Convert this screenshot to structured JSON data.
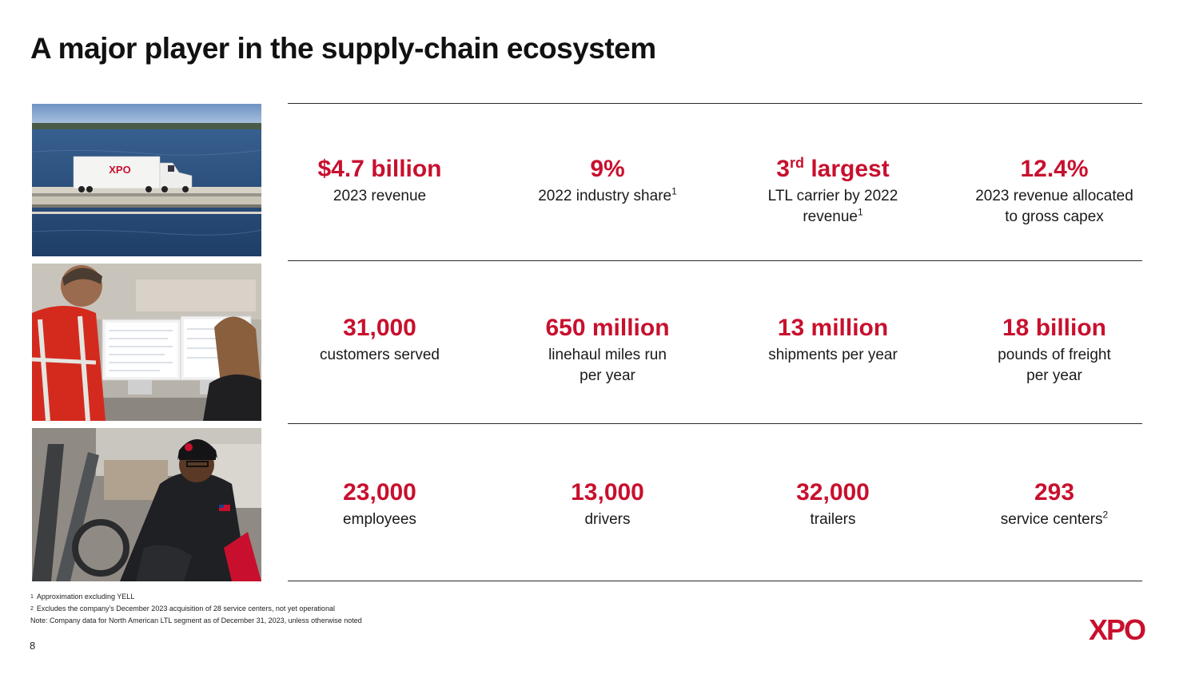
{
  "title": "A major player in the supply-chain ecosystem",
  "stats": [
    {
      "value": "$4.7 billion",
      "label": "2023 revenue"
    },
    {
      "value": "9%",
      "label": "2022 industry share",
      "label_sup": "1"
    },
    {
      "value_main": "3",
      "value_sup": "rd",
      "value_rest": " largest",
      "label_line1": "LTL carrier by 2022",
      "label_line2": "revenue",
      "label_sup": "1"
    },
    {
      "value": "12.4%",
      "label_line1": "2023 revenue allocated",
      "label_line2": "to gross capex"
    },
    {
      "value": "31,000",
      "label": "customers served"
    },
    {
      "value": "650 million",
      "label_line1": "linehaul miles run",
      "label_line2": "per year"
    },
    {
      "value": "13 million",
      "label": "shipments per year"
    },
    {
      "value": "18 billion",
      "label_line1": "pounds of freight",
      "label_line2": "per year"
    },
    {
      "value": "23,000",
      "label": "employees"
    },
    {
      "value": "13,000",
      "label": "drivers"
    },
    {
      "value": "32,000",
      "label": "trailers"
    },
    {
      "value": "293",
      "label": "service centers",
      "label_sup": "2"
    }
  ],
  "footnotes": {
    "fn1_num": "1",
    "fn1_text": "Approximation excluding YELL",
    "fn2_num": "2",
    "fn2_text": "Excludes the company’s December 2023 acquisition of 28 service centers, not yet operational",
    "note": "Note: Company data for North American LTL segment as of December 31, 2023, unless otherwise noted"
  },
  "page_number": "8",
  "logo_text": "XPO",
  "truck_text": "XPO",
  "colors": {
    "brand_red": "#c8102e",
    "text": "#1a1a1a",
    "rule": "#2a2a2a"
  }
}
